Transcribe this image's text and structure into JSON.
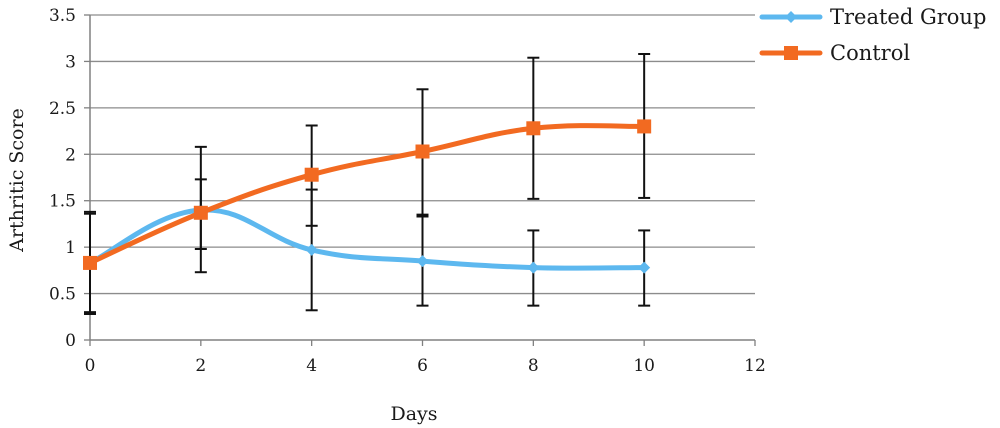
{
  "chart_data": {
    "type": "line",
    "title": "",
    "xlabel": "Days",
    "ylabel": "Arthritic Score",
    "xlim": [
      0,
      12
    ],
    "ylim": [
      0,
      3.5
    ],
    "x_ticks": [
      "0",
      "2",
      "4",
      "6",
      "8",
      "10",
      "12"
    ],
    "y_ticks": [
      "0",
      "0.5",
      "1",
      "1.5",
      "2",
      "2.5",
      "3",
      "3.5"
    ],
    "grid": "horizontal",
    "legend_position": "top-right",
    "series": [
      {
        "name": "Treated Group",
        "color": "#5db8ef",
        "marker": "diamond",
        "smooth": true,
        "points": [
          {
            "x": 0,
            "y": 0.83,
            "err_low": 0.28,
            "err_high": 1.38
          },
          {
            "x": 2,
            "y": 1.4,
            "err_low": 0.98,
            "err_high": 1.73
          },
          {
            "x": 4,
            "y": 0.97,
            "err_low": 0.32,
            "err_high": 1.62
          },
          {
            "x": 6,
            "y": 0.85,
            "err_low": 0.37,
            "err_high": 1.33
          },
          {
            "x": 8,
            "y": 0.78,
            "err_low": 0.37,
            "err_high": 1.18
          },
          {
            "x": 10,
            "y": 0.78,
            "err_low": 0.37,
            "err_high": 1.18
          }
        ]
      },
      {
        "name": "Control",
        "color": "#f26a21",
        "marker": "square",
        "smooth": true,
        "points": [
          {
            "x": 0,
            "y": 0.83,
            "err_low": 0.3,
            "err_high": 1.36
          },
          {
            "x": 2,
            "y": 1.37,
            "err_low": 0.73,
            "err_high": 2.08
          },
          {
            "x": 4,
            "y": 1.78,
            "err_low": 1.23,
            "err_high": 2.31
          },
          {
            "x": 6,
            "y": 2.03,
            "err_low": 1.35,
            "err_high": 2.7
          },
          {
            "x": 8,
            "y": 2.28,
            "err_low": 1.52,
            "err_high": 3.04
          },
          {
            "x": 10,
            "y": 2.3,
            "err_low": 1.53,
            "err_high": 3.08
          }
        ]
      }
    ]
  }
}
